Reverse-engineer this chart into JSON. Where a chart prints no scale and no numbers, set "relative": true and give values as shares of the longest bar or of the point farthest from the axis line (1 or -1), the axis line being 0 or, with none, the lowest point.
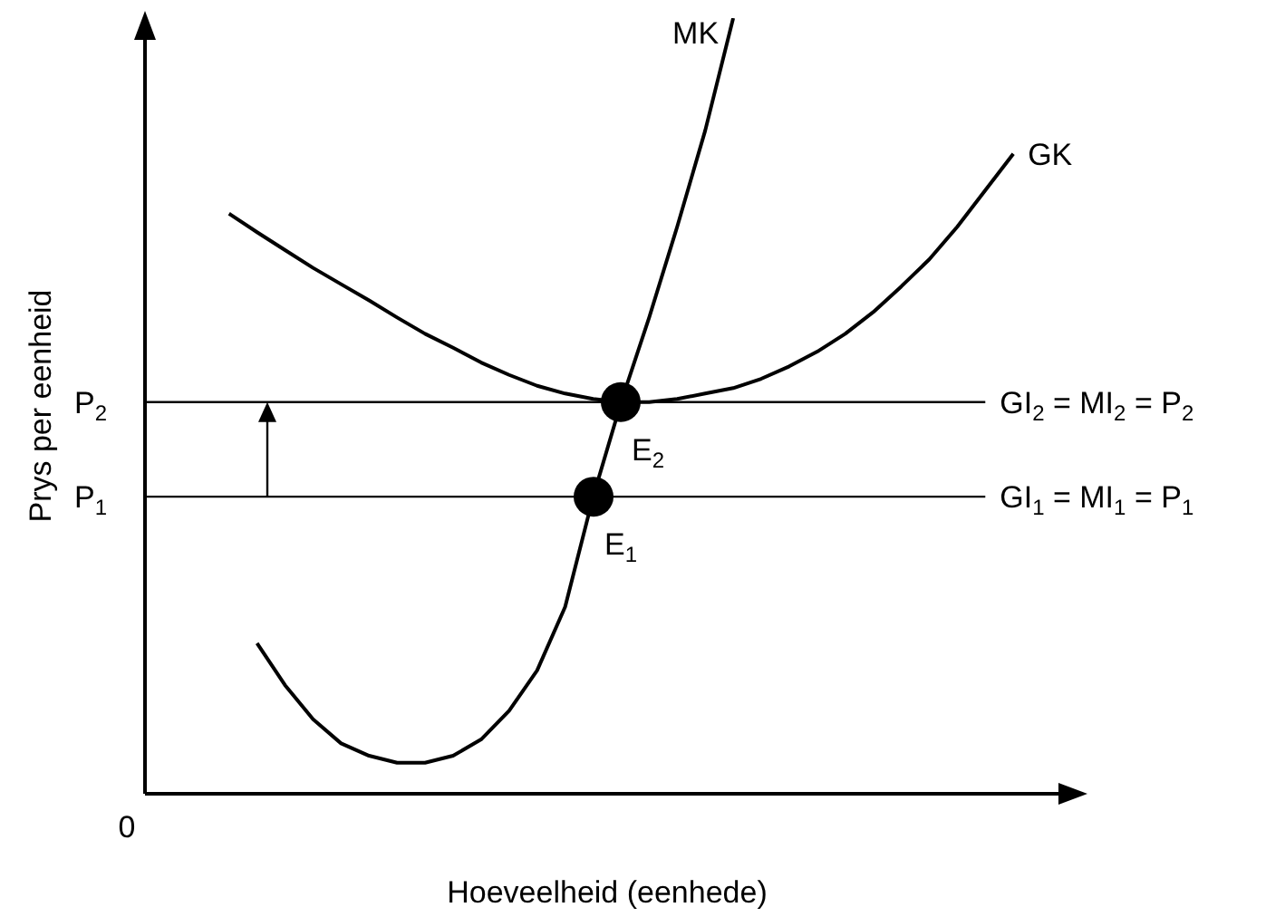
{
  "chart_data": {
    "type": "line",
    "relative": true,
    "xlabel": "Hoeveelheid (eenhede)",
    "ylabel": "Prys per eenheid",
    "categories": [
      null,
      null,
      null,
      null,
      null,
      null,
      null,
      null,
      null,
      null,
      null,
      null,
      null,
      null,
      null,
      null,
      null,
      null,
      null,
      null,
      null,
      null,
      null,
      null,
      null,
      null,
      null,
      null,
      null,
      null,
      null,
      null,
      null,
      null
    ],
    "series": [
      {
        "name": "MK",
        "color": "#000000",
        "values": [
          null,
          null,
          null,
          null,
          0.194,
          0.14,
          0.096,
          0.065,
          0.049,
          0.04,
          0.04,
          0.049,
          0.07,
          0.107,
          0.159,
          0.241,
          0.383,
          0.505,
          0.614,
          0.731,
          0.855,
          1.0,
          null,
          null,
          null,
          null,
          null,
          null,
          null,
          null,
          null,
          null,
          null,
          null
        ]
      },
      {
        "name": "GK",
        "color": "#000000",
        "values": [
          null,
          null,
          null,
          0.748,
          0.724,
          0.701,
          0.678,
          0.657,
          0.636,
          0.614,
          0.593,
          0.575,
          0.556,
          0.54,
          0.526,
          0.516,
          0.509,
          0.505,
          0.505,
          0.509,
          0.516,
          0.523,
          0.535,
          0.551,
          0.57,
          0.593,
          0.621,
          0.654,
          0.689,
          0.731,
          0.778,
          0.825,
          null,
          null
        ]
      },
      {
        "name": "GI$_{2}$ = MI$_{2}$ = P$_{2}$",
        "color": "#000000",
        "values": [
          0.505,
          0.505,
          0.505,
          0.505,
          0.505,
          0.505,
          0.505,
          0.505,
          0.505,
          0.505,
          0.505,
          0.505,
          0.505,
          0.505,
          0.505,
          0.505,
          0.505,
          0.505,
          0.505,
          0.505,
          0.505,
          0.505,
          0.505,
          0.505,
          0.505,
          0.505,
          0.505,
          0.505,
          0.505,
          0.505,
          0.505,
          null,
          null,
          null
        ]
      },
      {
        "name": "GI$_{1}$ = MI$_{1}$ = P$_{1}$",
        "color": "#000000",
        "values": [
          0.383,
          0.383,
          0.383,
          0.383,
          0.383,
          0.383,
          0.383,
          0.383,
          0.383,
          0.383,
          0.383,
          0.383,
          0.383,
          0.383,
          0.383,
          0.383,
          0.383,
          0.383,
          0.383,
          0.383,
          0.383,
          0.383,
          0.383,
          0.383,
          0.383,
          0.383,
          0.383,
          0.383,
          0.383,
          0.383,
          0.383,
          null,
          null,
          null
        ]
      }
    ],
    "annotations": [
      "P$_{2}$",
      "P$_{1}$",
      "E$_{2}$",
      "E$_{1}$",
      "0"
    ]
  }
}
